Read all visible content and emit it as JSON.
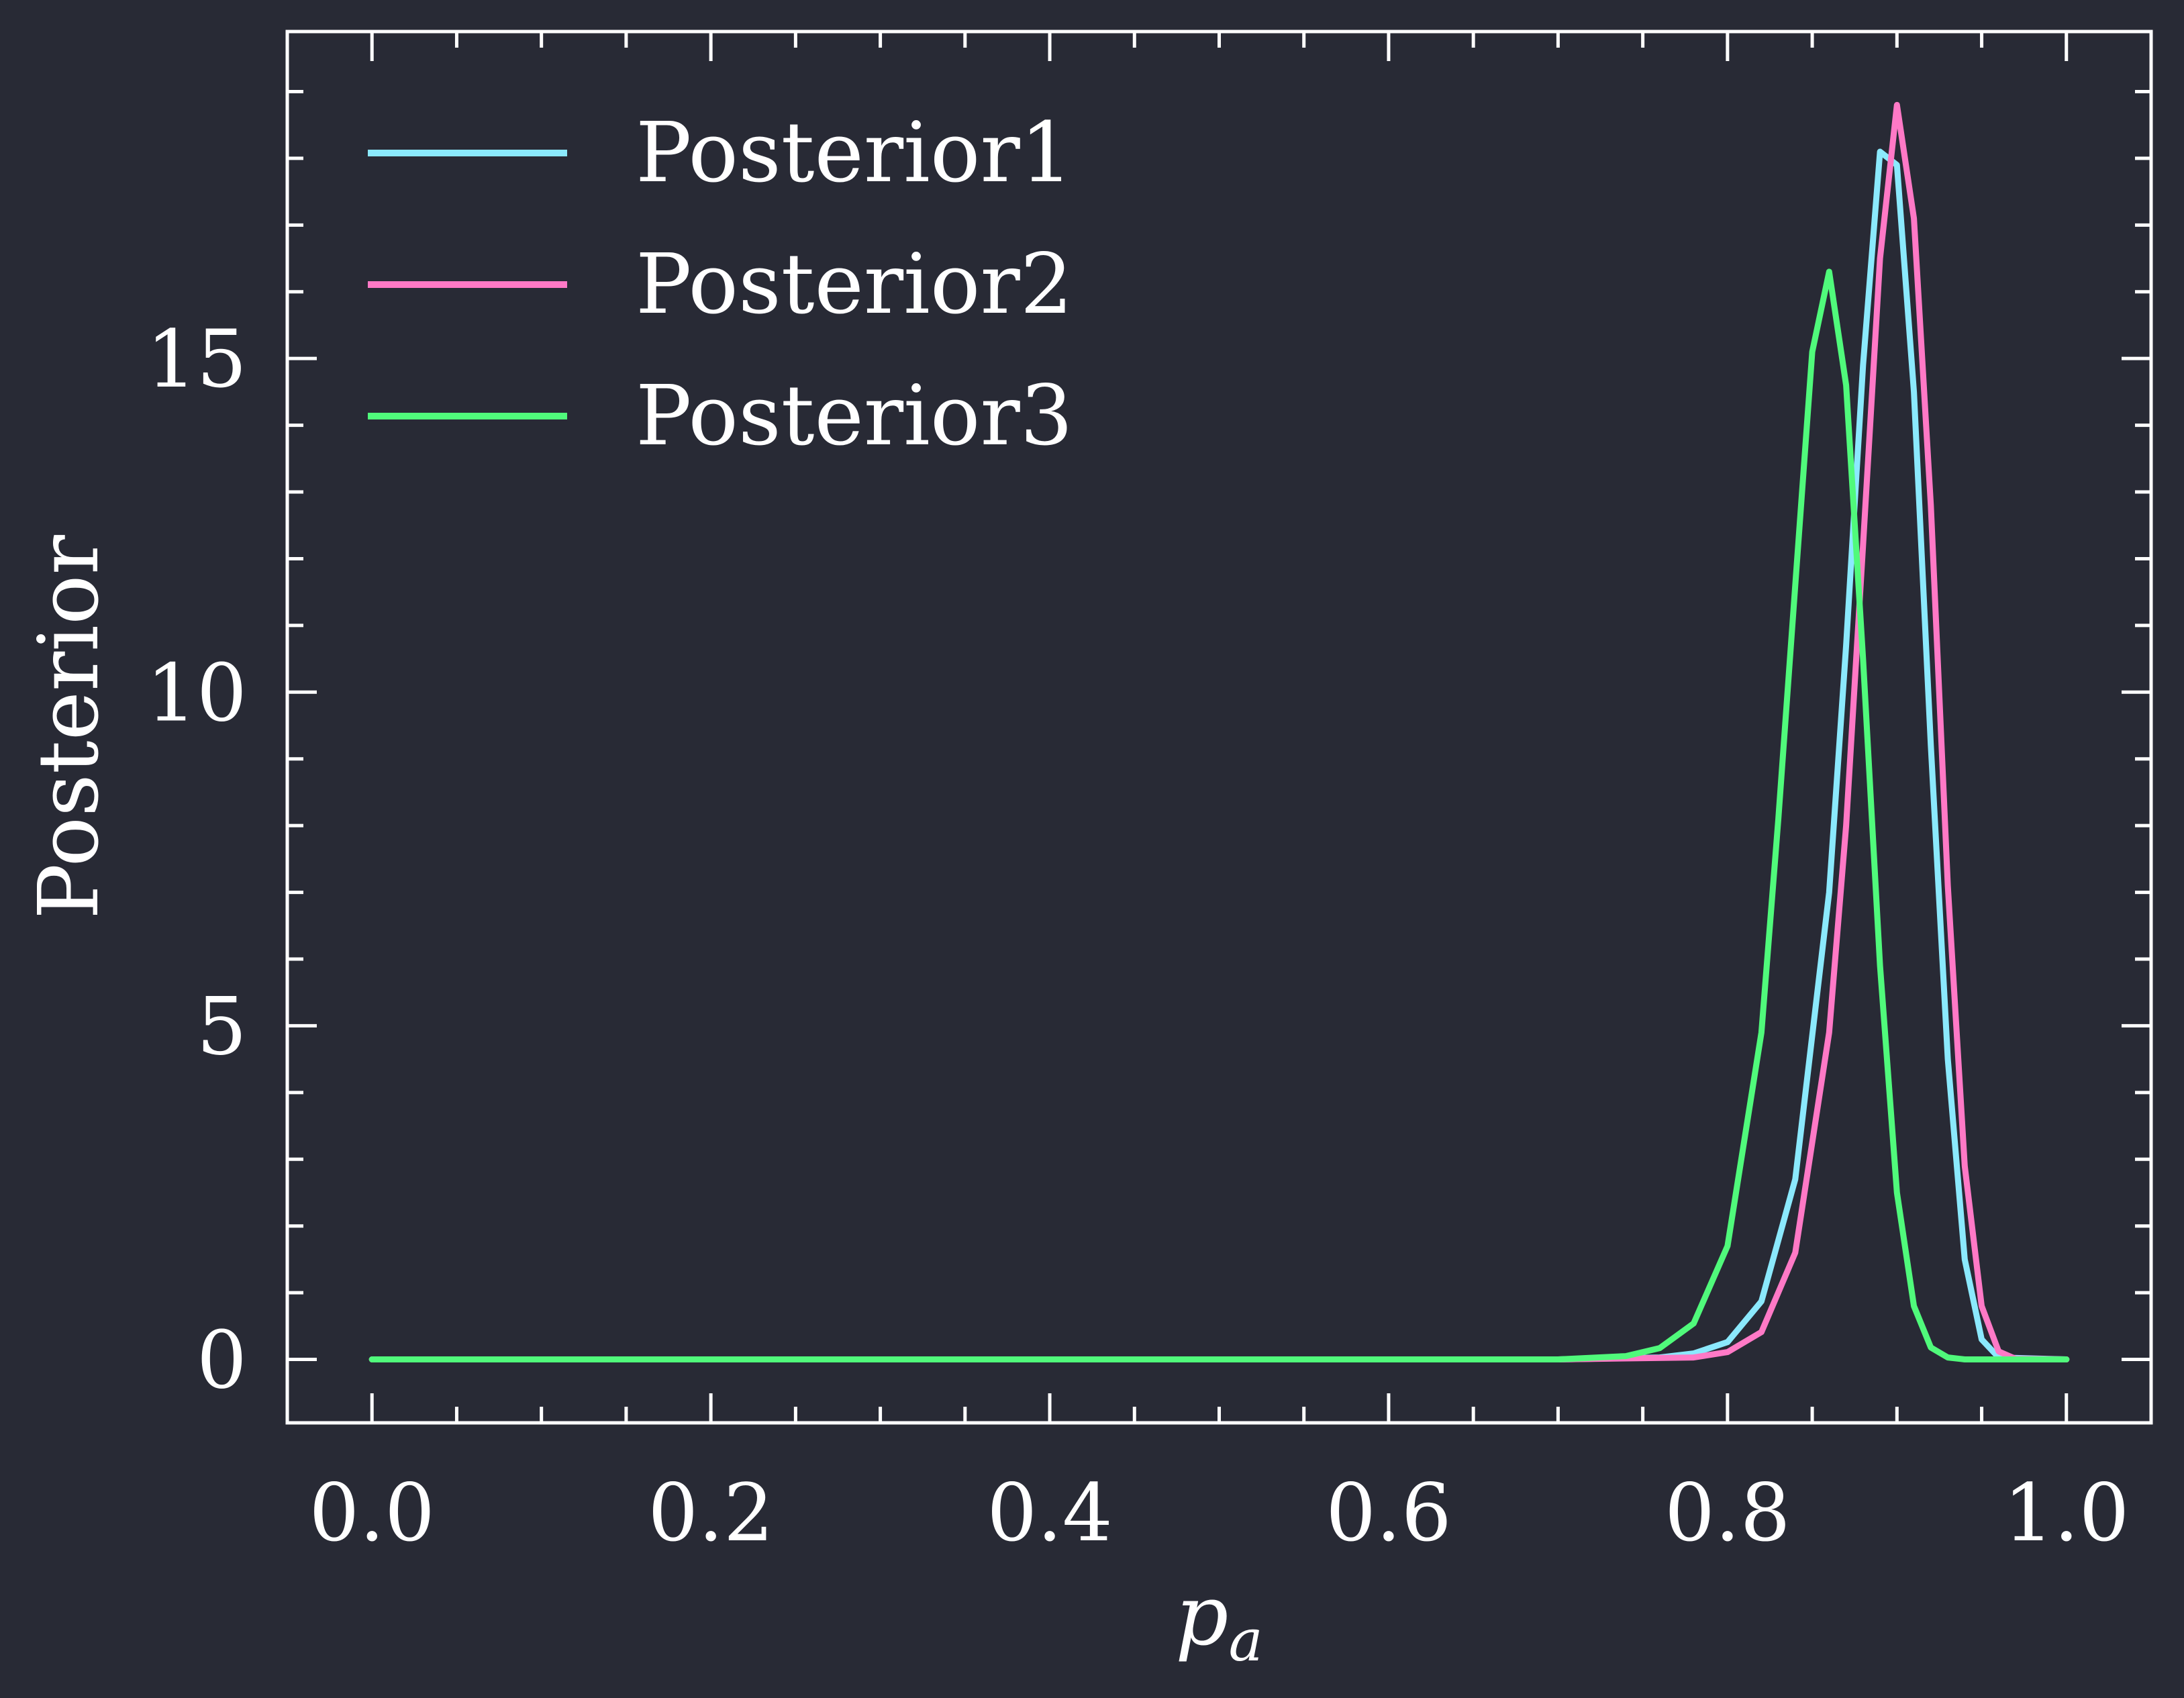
{
  "chart_data": {
    "type": "line",
    "title": "",
    "xlabel": "p",
    "xlabel_subscript": "a",
    "ylabel": "Posterior",
    "xlim": [
      -0.05,
      1.05
    ],
    "ylim": [
      -0.95,
      19.9
    ],
    "x_ticks": [
      0.0,
      0.2,
      0.4,
      0.6,
      0.8,
      1.0
    ],
    "x_tick_labels": [
      "0.0",
      "0.2",
      "0.4",
      "0.6",
      "0.8",
      "1.0"
    ],
    "x_minor_step": 0.05,
    "y_ticks": [
      0,
      5,
      10,
      15
    ],
    "y_tick_labels": [
      "0",
      "5",
      "10",
      "15"
    ],
    "y_minor_step": 1,
    "grid": false,
    "legend_position": "top-left",
    "background": "#282a35",
    "axis_color": "#ffffff",
    "series": [
      {
        "name": "Posterior1",
        "color": "#8be9fd",
        "x": [
          0.0,
          0.7,
          0.76,
          0.78,
          0.8,
          0.82,
          0.84,
          0.86,
          0.87,
          0.88,
          0.89,
          0.9,
          0.91,
          0.92,
          0.93,
          0.94,
          0.95,
          0.96,
          1.0
        ],
        "y": [
          0.0,
          0.0,
          0.03,
          0.09,
          0.26,
          0.87,
          2.7,
          7.0,
          10.7,
          14.9,
          18.1,
          17.9,
          14.5,
          9.2,
          4.5,
          1.5,
          0.3,
          0.03,
          0.0
        ]
      },
      {
        "name": "Posterior2",
        "color": "#ff79c6",
        "x": [
          0.0,
          0.7,
          0.78,
          0.8,
          0.82,
          0.84,
          0.86,
          0.87,
          0.88,
          0.89,
          0.9,
          0.91,
          0.92,
          0.93,
          0.94,
          0.95,
          0.96,
          0.97,
          1.0
        ],
        "y": [
          0.0,
          0.0,
          0.03,
          0.11,
          0.41,
          1.6,
          4.9,
          8.0,
          12.2,
          16.5,
          18.8,
          17.1,
          12.8,
          7.1,
          2.9,
          0.8,
          0.12,
          0.01,
          0.0
        ]
      },
      {
        "name": "Posterior3",
        "color": "#50fa7b",
        "x": [
          0.0,
          0.7,
          0.74,
          0.76,
          0.78,
          0.8,
          0.82,
          0.83,
          0.84,
          0.85,
          0.86,
          0.87,
          0.88,
          0.89,
          0.9,
          0.91,
          0.92,
          0.93,
          0.94,
          1.0
        ],
        "y": [
          0.0,
          0.0,
          0.05,
          0.17,
          0.54,
          1.7,
          4.9,
          8.1,
          11.6,
          15.1,
          16.3,
          14.6,
          10.5,
          5.9,
          2.5,
          0.8,
          0.18,
          0.03,
          0.0,
          0.0
        ]
      }
    ]
  }
}
